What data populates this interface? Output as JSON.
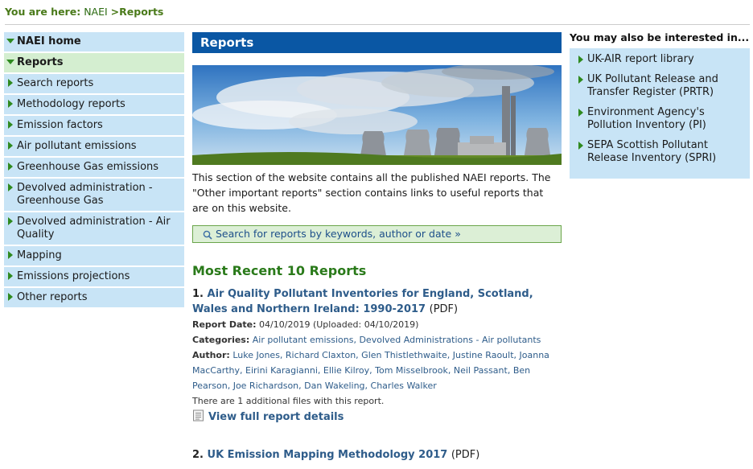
{
  "breadcrumb": {
    "label": "You are here:",
    "items": [
      "NAEI",
      ">Reports"
    ]
  },
  "sidebar": {
    "items": [
      {
        "label": "NAEI home",
        "expanded": true,
        "bold": true
      },
      {
        "label": "Reports",
        "expanded": true,
        "bold": true,
        "active": true
      },
      {
        "label": "Search reports"
      },
      {
        "label": "Methodology reports"
      },
      {
        "label": "Emission factors"
      },
      {
        "label": "Air pollutant emissions"
      },
      {
        "label": "Greenhouse Gas emissions"
      },
      {
        "label": "Devolved administration - Greenhouse Gas"
      },
      {
        "label": "Devolved administration - Air Quality"
      },
      {
        "label": "Mapping"
      },
      {
        "label": "Emissions projections"
      },
      {
        "label": "Other reports"
      }
    ]
  },
  "main": {
    "title": "Reports",
    "intro": "This section of the website contains all the published NAEI reports. The \"Other important reports\" section contains links to useful reports that are on this website.",
    "search_link": "Search for reports by keywords, author or date »",
    "recent_heading": "Most Recent 10 Reports",
    "reports": [
      {
        "num": "1.",
        "title": "Air Quality Pollutant Inventories for England, Scotland, Wales and Northern Ireland: 1990-2017",
        "format": "(PDF)",
        "date_label": "Report Date:",
        "date": "04/10/2019 (Uploaded: 04/10/2019)",
        "categories_label": "Categories:",
        "categories": "Air pollutant emissions, Devolved Administrations - Air pollutants",
        "author_label": "Author:",
        "authors": "Luke Jones, Richard Claxton, Glen Thistlethwaite, Justine Raoult, Joanna MacCarthy, Eirini Karagianni, Ellie Kilroy, Tom Misselbrook, Neil Passant, Ben Pearson, Joe Richardson, Dan Wakeling, Charles Walker",
        "additional": "There are 1 additional files with this report.",
        "view_label": "View full report details"
      },
      {
        "num": "2.",
        "title": "UK Emission Mapping Methodology 2017",
        "format": "(PDF)"
      }
    ]
  },
  "right": {
    "heading": "You may also be interested in...",
    "links": [
      "UK-AIR report library",
      "UK Pollutant Release and Transfer Register (PRTR)",
      "Environment Agency's Pollution Inventory (PI)",
      "SEPA Scottish Pollutant Release Inventory (SPRI)"
    ]
  },
  "colors": {
    "nav_bg": "#c8e4f6",
    "nav_active_bg": "#d4eed0",
    "title_bar": "#0a57a4",
    "accent_green": "#2f8a1f",
    "link_blue": "#2e5c8a"
  },
  "icons": {
    "nav_arrow": "triangle-right-icon",
    "nav_expanded": "triangle-down-icon",
    "search": "search-icon",
    "document": "document-icon"
  }
}
